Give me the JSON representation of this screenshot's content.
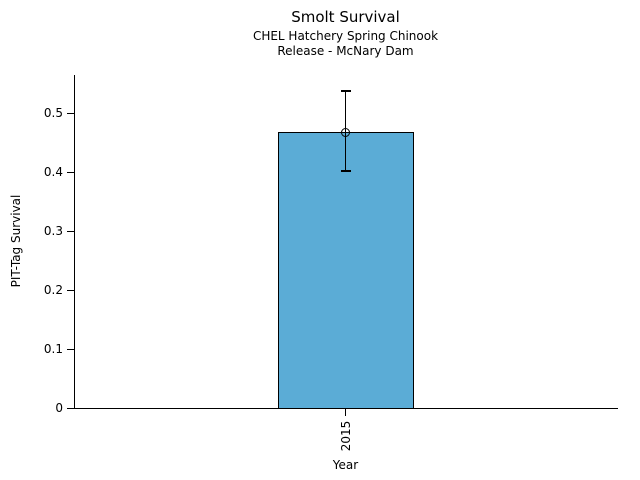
{
  "chart_data": {
    "type": "bar",
    "title": "Smolt Survival",
    "subtitle_line1": "CHEL Hatchery Spring Chinook",
    "subtitle_line2": "Release - McNary Dam",
    "xlabel": "Year",
    "ylabel": "PIT-Tag Survival",
    "categories": [
      "2015"
    ],
    "values": [
      0.468
    ],
    "error_lower": [
      0.402
    ],
    "error_upper": [
      0.538
    ],
    "ylim": [
      0,
      0.565
    ],
    "yticks": [
      {
        "label": "0",
        "value": 0.0
      },
      {
        "label": "0.1",
        "value": 0.1
      },
      {
        "label": "0.2",
        "value": 0.2
      },
      {
        "label": "0.3",
        "value": 0.3
      },
      {
        "label": "0.4",
        "value": 0.4
      },
      {
        "label": "0.5",
        "value": 0.5
      }
    ],
    "grid": "off",
    "legend": "none",
    "marker": "open-circle",
    "colors": {
      "bar_fill": "#5BACD6",
      "bar_edge": "#000000",
      "error_bar": "#000000",
      "axis": "#000000",
      "background": "#ffffff"
    }
  }
}
